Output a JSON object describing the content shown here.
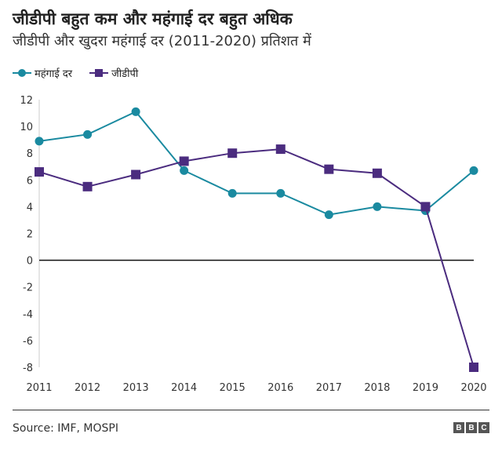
{
  "chart_data": {
    "type": "line",
    "title": "जीडीपी बहुत कम और महंगाई दर बहुत अधिक",
    "subtitle": "जीडीपी और खुदरा महंगाई दर (2011-2020) प्रतिशत में",
    "x": [
      "2011",
      "2012",
      "2013",
      "2014",
      "2015",
      "2016",
      "2017",
      "2018",
      "2019",
      "2020"
    ],
    "ylim": [
      -8,
      12
    ],
    "yticks": [
      12,
      10,
      8,
      6,
      4,
      2,
      0,
      -2,
      -4,
      -6,
      -8
    ],
    "legend": "top-left",
    "grid": false,
    "series": [
      {
        "name": "महंगाई दर",
        "color": "#1a8aa0",
        "marker": "circle",
        "values": [
          8.9,
          9.4,
          11.1,
          6.7,
          5.0,
          5.0,
          3.4,
          4.0,
          3.7,
          6.7
        ]
      },
      {
        "name": "जीडीपी",
        "color": "#4b2c7f",
        "marker": "square",
        "values": [
          6.6,
          5.5,
          6.4,
          7.4,
          8.0,
          8.3,
          6.8,
          6.5,
          4.0,
          -8.0
        ]
      }
    ]
  },
  "footer": {
    "source": "Source: IMF, MOSPI",
    "logo": "BBC"
  }
}
